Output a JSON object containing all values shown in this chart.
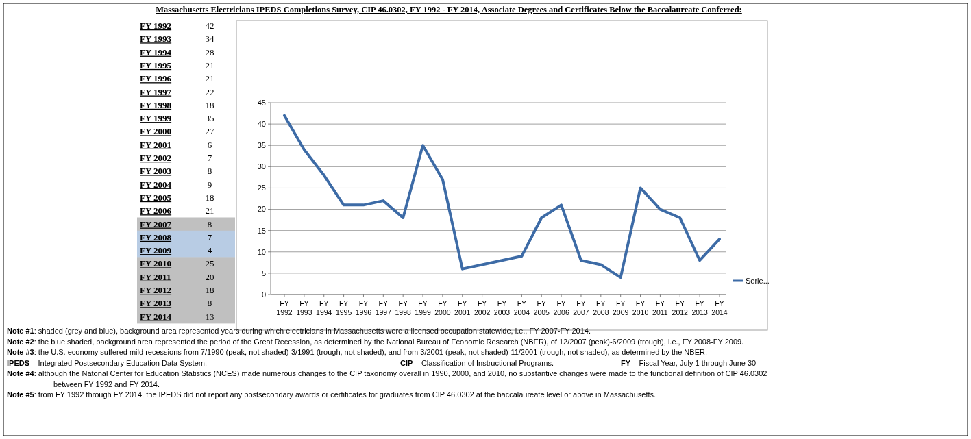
{
  "chart_data": [
    {
      "type": "other",
      "categories": [
        "FY 1992",
        "FY 1993",
        "FY 1994",
        "FY 1995",
        "FY 1996",
        "FY 1997",
        "FY 1998",
        "FY 1999",
        "FY 2000",
        "FY 2001",
        "FY 2002",
        "FY 2003",
        "FY 2004",
        "FY 2005",
        "FY 2006",
        "FY 2007",
        "FY 2008",
        "FY 2009",
        "FY 2010",
        "FY 2011",
        "FY 2012",
        "FY 2013",
        "FY 2014"
      ],
      "values": [
        42,
        34,
        28,
        21,
        21,
        22,
        18,
        35,
        27,
        6,
        7,
        8,
        9,
        18,
        21,
        8,
        7,
        4,
        25,
        20,
        18,
        8,
        13
      ],
      "data_labels": true,
      "colors": [
        "#ffffff",
        "#ffffff",
        "#ffffff",
        "#ffffff",
        "#ffffff",
        "#ffffff",
        "#ffffff",
        "#ffffff",
        "#ffffff",
        "#ffffff",
        "#ffffff",
        "#ffffff",
        "#ffffff",
        "#ffffff",
        "#ffffff",
        "#c0c0c0",
        "#b8cce4",
        "#b8cce4",
        "#c0c0c0",
        "#c0c0c0",
        "#c0c0c0",
        "#c0c0c0",
        "#c0c0c0"
      ]
    },
    {
      "type": "line",
      "title": "Massachusetts Electricians IPEDS Completions Survey, CIP 46.0302, FY 1992 - FY 2014, Associate Degrees and Certificates Below the Baccalaureate Conferred:",
      "categories": [
        "FY 1992",
        "FY 1993",
        "FY 1994",
        "FY 1995",
        "FY 1996",
        "FY 1997",
        "FY 1998",
        "FY 1999",
        "FY 2000",
        "FY 2001",
        "FY 2002",
        "FY 2003",
        "FY 2004",
        "FY 2005",
        "FY 2006",
        "FY 2007",
        "FY 2008",
        "FY 2009",
        "FY 2010",
        "FY 2011",
        "FY 2012",
        "FY 2013",
        "FY 2014"
      ],
      "series": [
        {
          "name": "Serie...",
          "color": "#3d6ba6",
          "values": [
            42,
            34,
            28,
            21,
            21,
            22,
            18,
            35,
            27,
            6,
            7,
            8,
            9,
            18,
            21,
            8,
            7,
            4,
            25,
            20,
            18,
            8,
            13
          ]
        }
      ],
      "ylim": [
        0,
        45
      ],
      "yticks": [
        0,
        5,
        10,
        15,
        20,
        25,
        30,
        35,
        40,
        45
      ],
      "grid": "y",
      "legend": "right",
      "annotations": [
        "Note #1: shaded (grey and blue), background area represented years during which electricians in Massachusetts were a licensed occupation statewide, i.e., FY 2007-FY 2014.",
        "Note #2: the blue shaded, background area represented the period of the Great Recession, as determined by the National Bureau of Economic Research (NBER), of 12/2007 (peak)-6/2009 (trough), i.e., FY 2008-FY 2009.",
        "Note #3: the U.S. economy suffered mild recessions from 7/1990 (peak, not shaded)-3/1991 (trough, not shaded), and from 3/2001 (peak, not shaded)-11/2001 (trough, not shaded),  as determined by the NBER.",
        "IPEDS = Integrated Postsecondary Education Data System.",
        "CIP = Classification of Instructional Programs.",
        "FY = Fiscal Year, July 1 through June 30",
        "Note #4: although the Natonal Center for Education Statistics (NCES) made numerous changes to the CIP taxonomy overall in 1990, 2000, and 2010, no substantive changes were made to the functional definition of CIP 46.0302 between FY 1992 and FY 2014.",
        "Note #5: from FY 1992 through FY 2014, the IPEDS did not report any postsecondary awards or certificates for graduates from CIP 46.0302 at the baccalaureate level or above in Massachusetts."
      ]
    }
  ]
}
